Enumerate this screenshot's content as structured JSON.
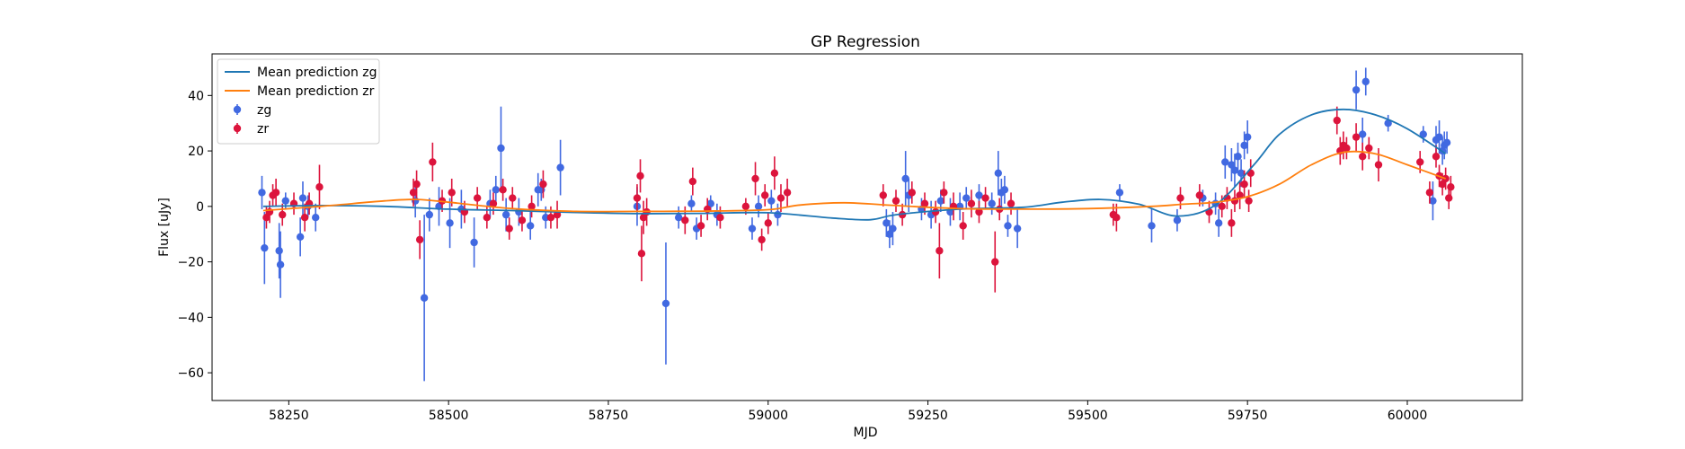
{
  "chart_data": {
    "type": "scatter",
    "title": "GP Regression",
    "xlabel": "MJD",
    "ylabel": "Flux [uJy]",
    "xlim": [
      58130,
      60180
    ],
    "ylim": [
      -70,
      55
    ],
    "xticks": [
      58250,
      58500,
      58750,
      59000,
      59250,
      59500,
      59750,
      60000
    ],
    "yticks": [
      -60,
      -40,
      -20,
      0,
      20,
      40
    ],
    "grid": false,
    "legend_position": "top-left",
    "legend": [
      {
        "label": "Mean prediction zg",
        "kind": "line",
        "color": "#1f77b4"
      },
      {
        "label": "Mean prediction zr",
        "kind": "line",
        "color": "#ff7f0e"
      },
      {
        "label": "zg",
        "kind": "errorbar",
        "color": "#4169e1"
      },
      {
        "label": "zr",
        "kind": "errorbar",
        "color": "#dc143c"
      }
    ],
    "lines": [
      {
        "name": "Mean prediction zg",
        "color": "#1f77b4",
        "x": [
          58210,
          58300,
          58400,
          58500,
          58600,
          58700,
          58800,
          58900,
          59000,
          59100,
          59160,
          59200,
          59300,
          59400,
          59460,
          59520,
          59580,
          59640,
          59700,
          59760,
          59800,
          59850,
          59900,
          59950,
          60000,
          60060
        ],
        "y": [
          0,
          0.3,
          0,
          -1,
          -1.5,
          -2.2,
          -2.6,
          -2.5,
          -2.3,
          -4.2,
          -4.8,
          -3,
          -1,
          -0.3,
          1.5,
          2.5,
          0.8,
          -3.5,
          0.5,
          15,
          26,
          33,
          35,
          33,
          28,
          19
        ]
      },
      {
        "name": "Mean prediction zr",
        "color": "#ff7f0e",
        "x": [
          58210,
          58300,
          58400,
          58450,
          58500,
          58600,
          58700,
          58800,
          58900,
          59000,
          59050,
          59120,
          59200,
          59300,
          59400,
          59500,
          59600,
          59650,
          59700,
          59750,
          59800,
          59850,
          59900,
          59950,
          60000,
          60060
        ],
        "y": [
          -1.5,
          0,
          2,
          2.5,
          1.5,
          -0.8,
          -1.8,
          -1.8,
          -1.7,
          -1.2,
          0.5,
          1.3,
          0.3,
          -0.8,
          -1,
          -0.8,
          0,
          0.8,
          1.5,
          3.5,
          8,
          15,
          19.5,
          19,
          15,
          10
        ]
      }
    ],
    "series": [
      {
        "name": "zg",
        "color": "#4169e1",
        "points": [
          {
            "x": 58208,
            "y": 5,
            "err": 6
          },
          {
            "x": 58212,
            "y": -15,
            "err": 13
          },
          {
            "x": 58235,
            "y": -16,
            "err": 10
          },
          {
            "x": 58237,
            "y": -21,
            "err": 12
          },
          {
            "x": 58245,
            "y": 2,
            "err": 3
          },
          {
            "x": 58268,
            "y": -11,
            "err": 7
          },
          {
            "x": 58272,
            "y": 3,
            "err": 6
          },
          {
            "x": 58280,
            "y": 0,
            "err": 4
          },
          {
            "x": 58292,
            "y": -4,
            "err": 5
          },
          {
            "x": 58448,
            "y": 2,
            "err": 6
          },
          {
            "x": 58462,
            "y": -33,
            "err": 30
          },
          {
            "x": 58470,
            "y": -3,
            "err": 6
          },
          {
            "x": 58485,
            "y": 0,
            "err": 7
          },
          {
            "x": 58502,
            "y": -6,
            "err": 9
          },
          {
            "x": 58520,
            "y": -1,
            "err": 7
          },
          {
            "x": 58540,
            "y": -13,
            "err": 9
          },
          {
            "x": 58565,
            "y": 1,
            "err": 5
          },
          {
            "x": 58574,
            "y": 6,
            "err": 5
          },
          {
            "x": 58582,
            "y": 21,
            "err": 15
          },
          {
            "x": 58590,
            "y": -3,
            "err": 6
          },
          {
            "x": 58610,
            "y": -2,
            "err": 5
          },
          {
            "x": 58628,
            "y": -7,
            "err": 5
          },
          {
            "x": 58640,
            "y": 6,
            "err": 6
          },
          {
            "x": 58645,
            "y": 6,
            "err": 4
          },
          {
            "x": 58652,
            "y": -4,
            "err": 4
          },
          {
            "x": 58675,
            "y": 14,
            "err": 10
          },
          {
            "x": 58795,
            "y": 0,
            "err": 7
          },
          {
            "x": 58840,
            "y": -35,
            "err": 22
          },
          {
            "x": 58860,
            "y": -4,
            "err": 4
          },
          {
            "x": 58880,
            "y": 1,
            "err": 3
          },
          {
            "x": 58888,
            "y": -8,
            "err": 4
          },
          {
            "x": 58910,
            "y": 1,
            "err": 3
          },
          {
            "x": 58920,
            "y": -3,
            "err": 4
          },
          {
            "x": 58975,
            "y": -8,
            "err": 4
          },
          {
            "x": 58985,
            "y": 0,
            "err": 4
          },
          {
            "x": 59005,
            "y": 2,
            "err": 4
          },
          {
            "x": 59015,
            "y": -3,
            "err": 4
          },
          {
            "x": 59185,
            "y": -6,
            "err": 5
          },
          {
            "x": 59190,
            "y": -10,
            "err": 5
          },
          {
            "x": 59195,
            "y": -8,
            "err": 6
          },
          {
            "x": 59215,
            "y": 10,
            "err": 10
          },
          {
            "x": 59220,
            "y": 4,
            "err": 6
          },
          {
            "x": 59240,
            "y": -1,
            "err": 4
          },
          {
            "x": 59255,
            "y": -3,
            "err": 5
          },
          {
            "x": 59270,
            "y": 2,
            "err": 4
          },
          {
            "x": 59285,
            "y": -2,
            "err": 5
          },
          {
            "x": 59300,
            "y": 0,
            "err": 5
          },
          {
            "x": 59310,
            "y": 3,
            "err": 4
          },
          {
            "x": 59330,
            "y": 4,
            "err": 4
          },
          {
            "x": 59350,
            "y": 1,
            "err": 4
          },
          {
            "x": 59360,
            "y": 12,
            "err": 8
          },
          {
            "x": 59365,
            "y": 5,
            "err": 5
          },
          {
            "x": 59370,
            "y": 6,
            "err": 5
          },
          {
            "x": 59375,
            "y": -7,
            "err": 4
          },
          {
            "x": 59390,
            "y": -8,
            "err": 7
          },
          {
            "x": 59550,
            "y": 5,
            "err": 3
          },
          {
            "x": 59600,
            "y": -7,
            "err": 6
          },
          {
            "x": 59640,
            "y": -5,
            "err": 4
          },
          {
            "x": 59680,
            "y": 3,
            "err": 3
          },
          {
            "x": 59700,
            "y": 1,
            "err": 4
          },
          {
            "x": 59705,
            "y": -6,
            "err": 5
          },
          {
            "x": 59715,
            "y": 16,
            "err": 6
          },
          {
            "x": 59725,
            "y": 15,
            "err": 6
          },
          {
            "x": 59730,
            "y": 13,
            "err": 6
          },
          {
            "x": 59735,
            "y": 18,
            "err": 5
          },
          {
            "x": 59740,
            "y": 12,
            "err": 5
          },
          {
            "x": 59745,
            "y": 22,
            "err": 5
          },
          {
            "x": 59750,
            "y": 25,
            "err": 6
          },
          {
            "x": 59920,
            "y": 42,
            "err": 7
          },
          {
            "x": 59930,
            "y": 26,
            "err": 6
          },
          {
            "x": 59935,
            "y": 45,
            "err": 5
          },
          {
            "x": 59970,
            "y": 30,
            "err": 3
          },
          {
            "x": 60025,
            "y": 26,
            "err": 3
          },
          {
            "x": 60040,
            "y": 2,
            "err": 7
          },
          {
            "x": 60045,
            "y": 24,
            "err": 5
          },
          {
            "x": 60050,
            "y": 25,
            "err": 6
          },
          {
            "x": 60055,
            "y": 20,
            "err": 5
          },
          {
            "x": 60058,
            "y": 22,
            "err": 5
          },
          {
            "x": 60062,
            "y": 23,
            "err": 4
          }
        ]
      },
      {
        "name": "zr",
        "color": "#dc143c",
        "points": [
          {
            "x": 58215,
            "y": -4,
            "err": 4
          },
          {
            "x": 58220,
            "y": -2,
            "err": 4
          },
          {
            "x": 58225,
            "y": 4,
            "err": 4
          },
          {
            "x": 58230,
            "y": 5,
            "err": 5
          },
          {
            "x": 58240,
            "y": -3,
            "err": 4
          },
          {
            "x": 58258,
            "y": 1,
            "err": 4
          },
          {
            "x": 58275,
            "y": -4,
            "err": 5
          },
          {
            "x": 58282,
            "y": 1,
            "err": 4
          },
          {
            "x": 58298,
            "y": 7,
            "err": 8
          },
          {
            "x": 58445,
            "y": 5,
            "err": 5
          },
          {
            "x": 58450,
            "y": 8,
            "err": 5
          },
          {
            "x": 58455,
            "y": -12,
            "err": 7
          },
          {
            "x": 58475,
            "y": 16,
            "err": 7
          },
          {
            "x": 58490,
            "y": 2,
            "err": 4
          },
          {
            "x": 58505,
            "y": 5,
            "err": 5
          },
          {
            "x": 58525,
            "y": -2,
            "err": 4
          },
          {
            "x": 58545,
            "y": 3,
            "err": 4
          },
          {
            "x": 58560,
            "y": -4,
            "err": 4
          },
          {
            "x": 58570,
            "y": 1,
            "err": 4
          },
          {
            "x": 58585,
            "y": 6,
            "err": 4
          },
          {
            "x": 58595,
            "y": -8,
            "err": 4
          },
          {
            "x": 58600,
            "y": 3,
            "err": 4
          },
          {
            "x": 58615,
            "y": -5,
            "err": 4
          },
          {
            "x": 58630,
            "y": 0,
            "err": 4
          },
          {
            "x": 58648,
            "y": 8,
            "err": 5
          },
          {
            "x": 58660,
            "y": -4,
            "err": 4
          },
          {
            "x": 58670,
            "y": -3,
            "err": 5
          },
          {
            "x": 58795,
            "y": 3,
            "err": 5
          },
          {
            "x": 58800,
            "y": 11,
            "err": 6
          },
          {
            "x": 58802,
            "y": -17,
            "err": 10
          },
          {
            "x": 58805,
            "y": -4,
            "err": 6
          },
          {
            "x": 58810,
            "y": -2,
            "err": 5
          },
          {
            "x": 58870,
            "y": -5,
            "err": 5
          },
          {
            "x": 58882,
            "y": 9,
            "err": 5
          },
          {
            "x": 58895,
            "y": -7,
            "err": 4
          },
          {
            "x": 58905,
            "y": -1,
            "err": 4
          },
          {
            "x": 58925,
            "y": -4,
            "err": 4
          },
          {
            "x": 58965,
            "y": 0,
            "err": 3
          },
          {
            "x": 58980,
            "y": 10,
            "err": 6
          },
          {
            "x": 58990,
            "y": -12,
            "err": 4
          },
          {
            "x": 58995,
            "y": 4,
            "err": 4
          },
          {
            "x": 59000,
            "y": -6,
            "err": 4
          },
          {
            "x": 59010,
            "y": 12,
            "err": 6
          },
          {
            "x": 59020,
            "y": 3,
            "err": 5
          },
          {
            "x": 59030,
            "y": 5,
            "err": 5
          },
          {
            "x": 59180,
            "y": 4,
            "err": 4
          },
          {
            "x": 59200,
            "y": 2,
            "err": 4
          },
          {
            "x": 59210,
            "y": -3,
            "err": 4
          },
          {
            "x": 59225,
            "y": 5,
            "err": 4
          },
          {
            "x": 59245,
            "y": 1,
            "err": 4
          },
          {
            "x": 59262,
            "y": -2,
            "err": 4
          },
          {
            "x": 59268,
            "y": -16,
            "err": 10
          },
          {
            "x": 59275,
            "y": 5,
            "err": 4
          },
          {
            "x": 59290,
            "y": 0,
            "err": 5
          },
          {
            "x": 59305,
            "y": -7,
            "err": 5
          },
          {
            "x": 59318,
            "y": 1,
            "err": 5
          },
          {
            "x": 59330,
            "y": -2,
            "err": 4
          },
          {
            "x": 59340,
            "y": 3,
            "err": 4
          },
          {
            "x": 59355,
            "y": -20,
            "err": 11
          },
          {
            "x": 59362,
            "y": -1,
            "err": 4
          },
          {
            "x": 59380,
            "y": 1,
            "err": 4
          },
          {
            "x": 59540,
            "y": -3,
            "err": 4
          },
          {
            "x": 59545,
            "y": -4,
            "err": 5
          },
          {
            "x": 59645,
            "y": 3,
            "err": 4
          },
          {
            "x": 59675,
            "y": 4,
            "err": 4
          },
          {
            "x": 59690,
            "y": -2,
            "err": 4
          },
          {
            "x": 59710,
            "y": 0,
            "err": 4
          },
          {
            "x": 59718,
            "y": 3,
            "err": 4
          },
          {
            "x": 59725,
            "y": -6,
            "err": 5
          },
          {
            "x": 59730,
            "y": 2,
            "err": 4
          },
          {
            "x": 59738,
            "y": 4,
            "err": 5
          },
          {
            "x": 59745,
            "y": 8,
            "err": 5
          },
          {
            "x": 59752,
            "y": 2,
            "err": 4
          },
          {
            "x": 59755,
            "y": 12,
            "err": 5
          },
          {
            "x": 59890,
            "y": 31,
            "err": 5
          },
          {
            "x": 59895,
            "y": 20,
            "err": 5
          },
          {
            "x": 59900,
            "y": 22,
            "err": 5
          },
          {
            "x": 59905,
            "y": 21,
            "err": 4
          },
          {
            "x": 59920,
            "y": 25,
            "err": 5
          },
          {
            "x": 59930,
            "y": 18,
            "err": 5
          },
          {
            "x": 59940,
            "y": 21,
            "err": 4
          },
          {
            "x": 59955,
            "y": 15,
            "err": 6
          },
          {
            "x": 60020,
            "y": 16,
            "err": 4
          },
          {
            "x": 60035,
            "y": 5,
            "err": 4
          },
          {
            "x": 60045,
            "y": 18,
            "err": 4
          },
          {
            "x": 60050,
            "y": 11,
            "err": 4
          },
          {
            "x": 60055,
            "y": 8,
            "err": 4
          },
          {
            "x": 60060,
            "y": 10,
            "err": 4
          },
          {
            "x": 60065,
            "y": 3,
            "err": 4
          },
          {
            "x": 60068,
            "y": 7,
            "err": 4
          }
        ]
      }
    ]
  }
}
